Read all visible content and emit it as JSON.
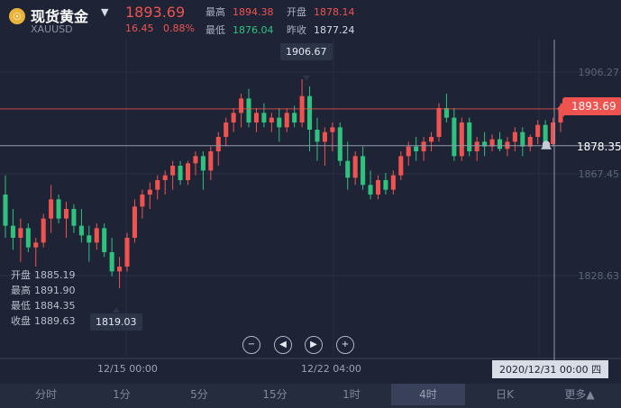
{
  "header": {
    "logo_glyph": "☉",
    "name": "现货黄金",
    "caret": "▼",
    "code": "XAUUSD",
    "price": "1893.69",
    "change": "16.45",
    "change_pct": "0.88%",
    "high_label": "最高",
    "high": "1894.38",
    "low_label": "最低",
    "low": "1876.04",
    "open_label": "开盘",
    "open": "1878.14",
    "prev_label": "昨收",
    "prev": "1877.24"
  },
  "ohlc_panel": {
    "open_label": "开盘",
    "open": "1885.19",
    "high_label": "最高",
    "high": "1891.90",
    "low_label": "最低",
    "low": "1884.35",
    "close_label": "收盘",
    "close": "1889.63"
  },
  "annotations": {
    "max": "1906.67",
    "min": "1819.03",
    "current_price": "1893.69",
    "crosshair_price": "1878.35",
    "crosshair_date": "2020/12/31  00:00 四"
  },
  "axis": {
    "y_ticks": [
      "1906.27",
      "1867.45",
      "1828.63"
    ],
    "x_ticks": [
      "12/15 00:00",
      "12/22 04:00"
    ]
  },
  "controls": {
    "zoom_out": "−",
    "prev": "◀",
    "next": "▶",
    "zoom_in": "+"
  },
  "tabs": [
    {
      "label": "分时"
    },
    {
      "label": "1分"
    },
    {
      "label": "5分"
    },
    {
      "label": "15分"
    },
    {
      "label": "1时"
    },
    {
      "label": "4时"
    },
    {
      "label": "日K"
    },
    {
      "label": "更多▲"
    }
  ],
  "active_tab": "4时",
  "colors": {
    "up": "#ef5350",
    "down": "#2ec27e",
    "bg": "#1e2435"
  },
  "chart_data": {
    "type": "candlestick",
    "ylim": [
      1810,
      1915
    ],
    "candles": [
      [
        1858,
        1866,
        1840,
        1845
      ],
      [
        1845,
        1852,
        1835,
        1840
      ],
      [
        1840,
        1848,
        1830,
        1844
      ],
      [
        1844,
        1846,
        1834,
        1836
      ],
      [
        1836,
        1840,
        1828,
        1838
      ],
      [
        1838,
        1850,
        1836,
        1848
      ],
      [
        1848,
        1862,
        1842,
        1856
      ],
      [
        1856,
        1858,
        1846,
        1848
      ],
      [
        1848,
        1855,
        1840,
        1852
      ],
      [
        1852,
        1854,
        1842,
        1845
      ],
      [
        1845,
        1852,
        1838,
        1841
      ],
      [
        1841,
        1845,
        1830,
        1838
      ],
      [
        1838,
        1846,
        1835,
        1844
      ],
      [
        1844,
        1846,
        1832,
        1834
      ],
      [
        1834,
        1840,
        1824,
        1826
      ],
      [
        1826,
        1832,
        1819,
        1828
      ],
      [
        1828,
        1842,
        1826,
        1840
      ],
      [
        1840,
        1856,
        1838,
        1853
      ],
      [
        1853,
        1860,
        1848,
        1858
      ],
      [
        1858,
        1863,
        1852,
        1860
      ],
      [
        1860,
        1866,
        1856,
        1864
      ],
      [
        1864,
        1868,
        1858,
        1866
      ],
      [
        1866,
        1872,
        1860,
        1870
      ],
      [
        1870,
        1872,
        1862,
        1864
      ],
      [
        1864,
        1872,
        1862,
        1871
      ],
      [
        1871,
        1876,
        1866,
        1874
      ],
      [
        1874,
        1876,
        1860,
        1868
      ],
      [
        1868,
        1878,
        1864,
        1876
      ],
      [
        1876,
        1884,
        1870,
        1882
      ],
      [
        1882,
        1890,
        1878,
        1888
      ],
      [
        1888,
        1894,
        1884,
        1892
      ],
      [
        1892,
        1900,
        1886,
        1898
      ],
      [
        1898,
        1902,
        1886,
        1888
      ],
      [
        1888,
        1894,
        1884,
        1892
      ],
      [
        1892,
        1896,
        1886,
        1888
      ],
      [
        1888,
        1892,
        1884,
        1890
      ],
      [
        1890,
        1894,
        1880,
        1886
      ],
      [
        1886,
        1894,
        1884,
        1892
      ],
      [
        1892,
        1895,
        1886,
        1888
      ],
      [
        1888,
        1906,
        1886,
        1899
      ],
      [
        1899,
        1903,
        1876,
        1885
      ],
      [
        1885,
        1890,
        1872,
        1880
      ],
      [
        1880,
        1886,
        1870,
        1884
      ],
      [
        1884,
        1888,
        1876,
        1886
      ],
      [
        1886,
        1888,
        1870,
        1872
      ],
      [
        1872,
        1880,
        1860,
        1865
      ],
      [
        1865,
        1876,
        1862,
        1874
      ],
      [
        1874,
        1878,
        1860,
        1862
      ],
      [
        1862,
        1868,
        1856,
        1858
      ],
      [
        1858,
        1866,
        1856,
        1864
      ],
      [
        1864,
        1867,
        1858,
        1860
      ],
      [
        1860,
        1868,
        1858,
        1866
      ],
      [
        1866,
        1876,
        1864,
        1874
      ],
      [
        1874,
        1880,
        1870,
        1878
      ],
      [
        1878,
        1882,
        1872,
        1876
      ],
      [
        1876,
        1882,
        1872,
        1880
      ],
      [
        1880,
        1884,
        1876,
        1882
      ],
      [
        1882,
        1896,
        1880,
        1894
      ],
      [
        1894,
        1900,
        1888,
        1890
      ],
      [
        1890,
        1894,
        1872,
        1874
      ],
      [
        1874,
        1890,
        1872,
        1888
      ],
      [
        1888,
        1890,
        1874,
        1876
      ],
      [
        1876,
        1882,
        1872,
        1880
      ],
      [
        1880,
        1884,
        1874,
        1878
      ],
      [
        1878,
        1883,
        1876,
        1881
      ],
      [
        1881,
        1884,
        1876,
        1877
      ],
      [
        1877,
        1882,
        1874,
        1880
      ],
      [
        1880,
        1886,
        1876,
        1884
      ],
      [
        1884,
        1886,
        1874,
        1878
      ],
      [
        1878,
        1883,
        1876,
        1882
      ],
      [
        1882,
        1889,
        1879,
        1887
      ],
      [
        1887,
        1889,
        1878,
        1879
      ],
      [
        1879,
        1890,
        1878,
        1888
      ],
      [
        1888,
        1896,
        1884,
        1894
      ]
    ]
  }
}
